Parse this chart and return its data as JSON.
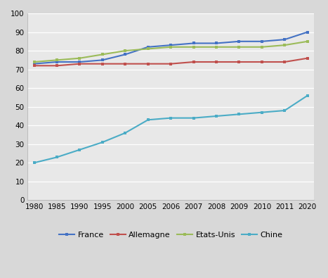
{
  "x_labels": [
    1980,
    1985,
    1990,
    1995,
    2000,
    2005,
    2006,
    2007,
    2008,
    2009,
    2010,
    2011,
    2020
  ],
  "series": {
    "France": {
      "values": [
        73,
        74,
        74,
        75,
        78,
        82,
        83,
        84,
        84,
        85,
        85,
        86,
        90
      ],
      "color": "#4472C4"
    },
    "Allemagne": {
      "values": [
        72,
        72,
        73,
        73,
        73,
        73,
        73,
        74,
        74,
        74,
        74,
        74,
        76
      ],
      "color": "#C0504D"
    },
    "Etats-Unis": {
      "values": [
        74,
        75,
        76,
        78,
        80,
        81,
        82,
        82,
        82,
        82,
        82,
        83,
        85
      ],
      "color": "#9BBB59"
    },
    "Chine": {
      "values": [
        20,
        23,
        27,
        31,
        36,
        43,
        44,
        44,
        45,
        46,
        47,
        48,
        56
      ],
      "color": "#4BACC6"
    }
  },
  "ylim": [
    0,
    100
  ],
  "yticks": [
    0,
    10,
    20,
    30,
    40,
    50,
    60,
    70,
    80,
    90,
    100
  ],
  "plot_bg_color": "#E8E8E8",
  "fig_bg_color": "#D8D8D8",
  "grid_color": "#FFFFFF",
  "legend_order": [
    "France",
    "Allemagne",
    "Etats-Unis",
    "Chine"
  ]
}
